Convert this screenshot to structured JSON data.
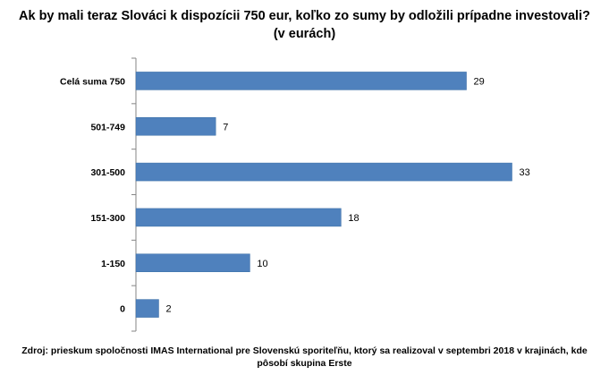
{
  "title_line1": "Ak by mali teraz Slováci k dispozícii 750 eur, koľko zo sumy by odložili prípadne investovali?",
  "title_line2": "(v eurách)",
  "footnote_line1": "Zdroj: prieskum spoločnosti IMAS International pre Slovenskú sporiteľňu, ktorý sa realizoval v septembri 2018 v krajinách, kde",
  "footnote_line2": "pôsobí skupina Erste",
  "chart_data": {
    "type": "bar",
    "orientation": "horizontal",
    "categories": [
      "Celá suma 750",
      "501-749",
      "301-500",
      "151-300",
      "1-150",
      "0"
    ],
    "values": [
      29,
      7,
      33,
      18,
      10,
      2
    ],
    "value_labels": [
      "29",
      "7",
      "33",
      "18",
      "10",
      "2"
    ],
    "xlim": [
      0,
      35
    ],
    "bar_color": "#4f81bd",
    "grid": false,
    "legend": "none"
  }
}
